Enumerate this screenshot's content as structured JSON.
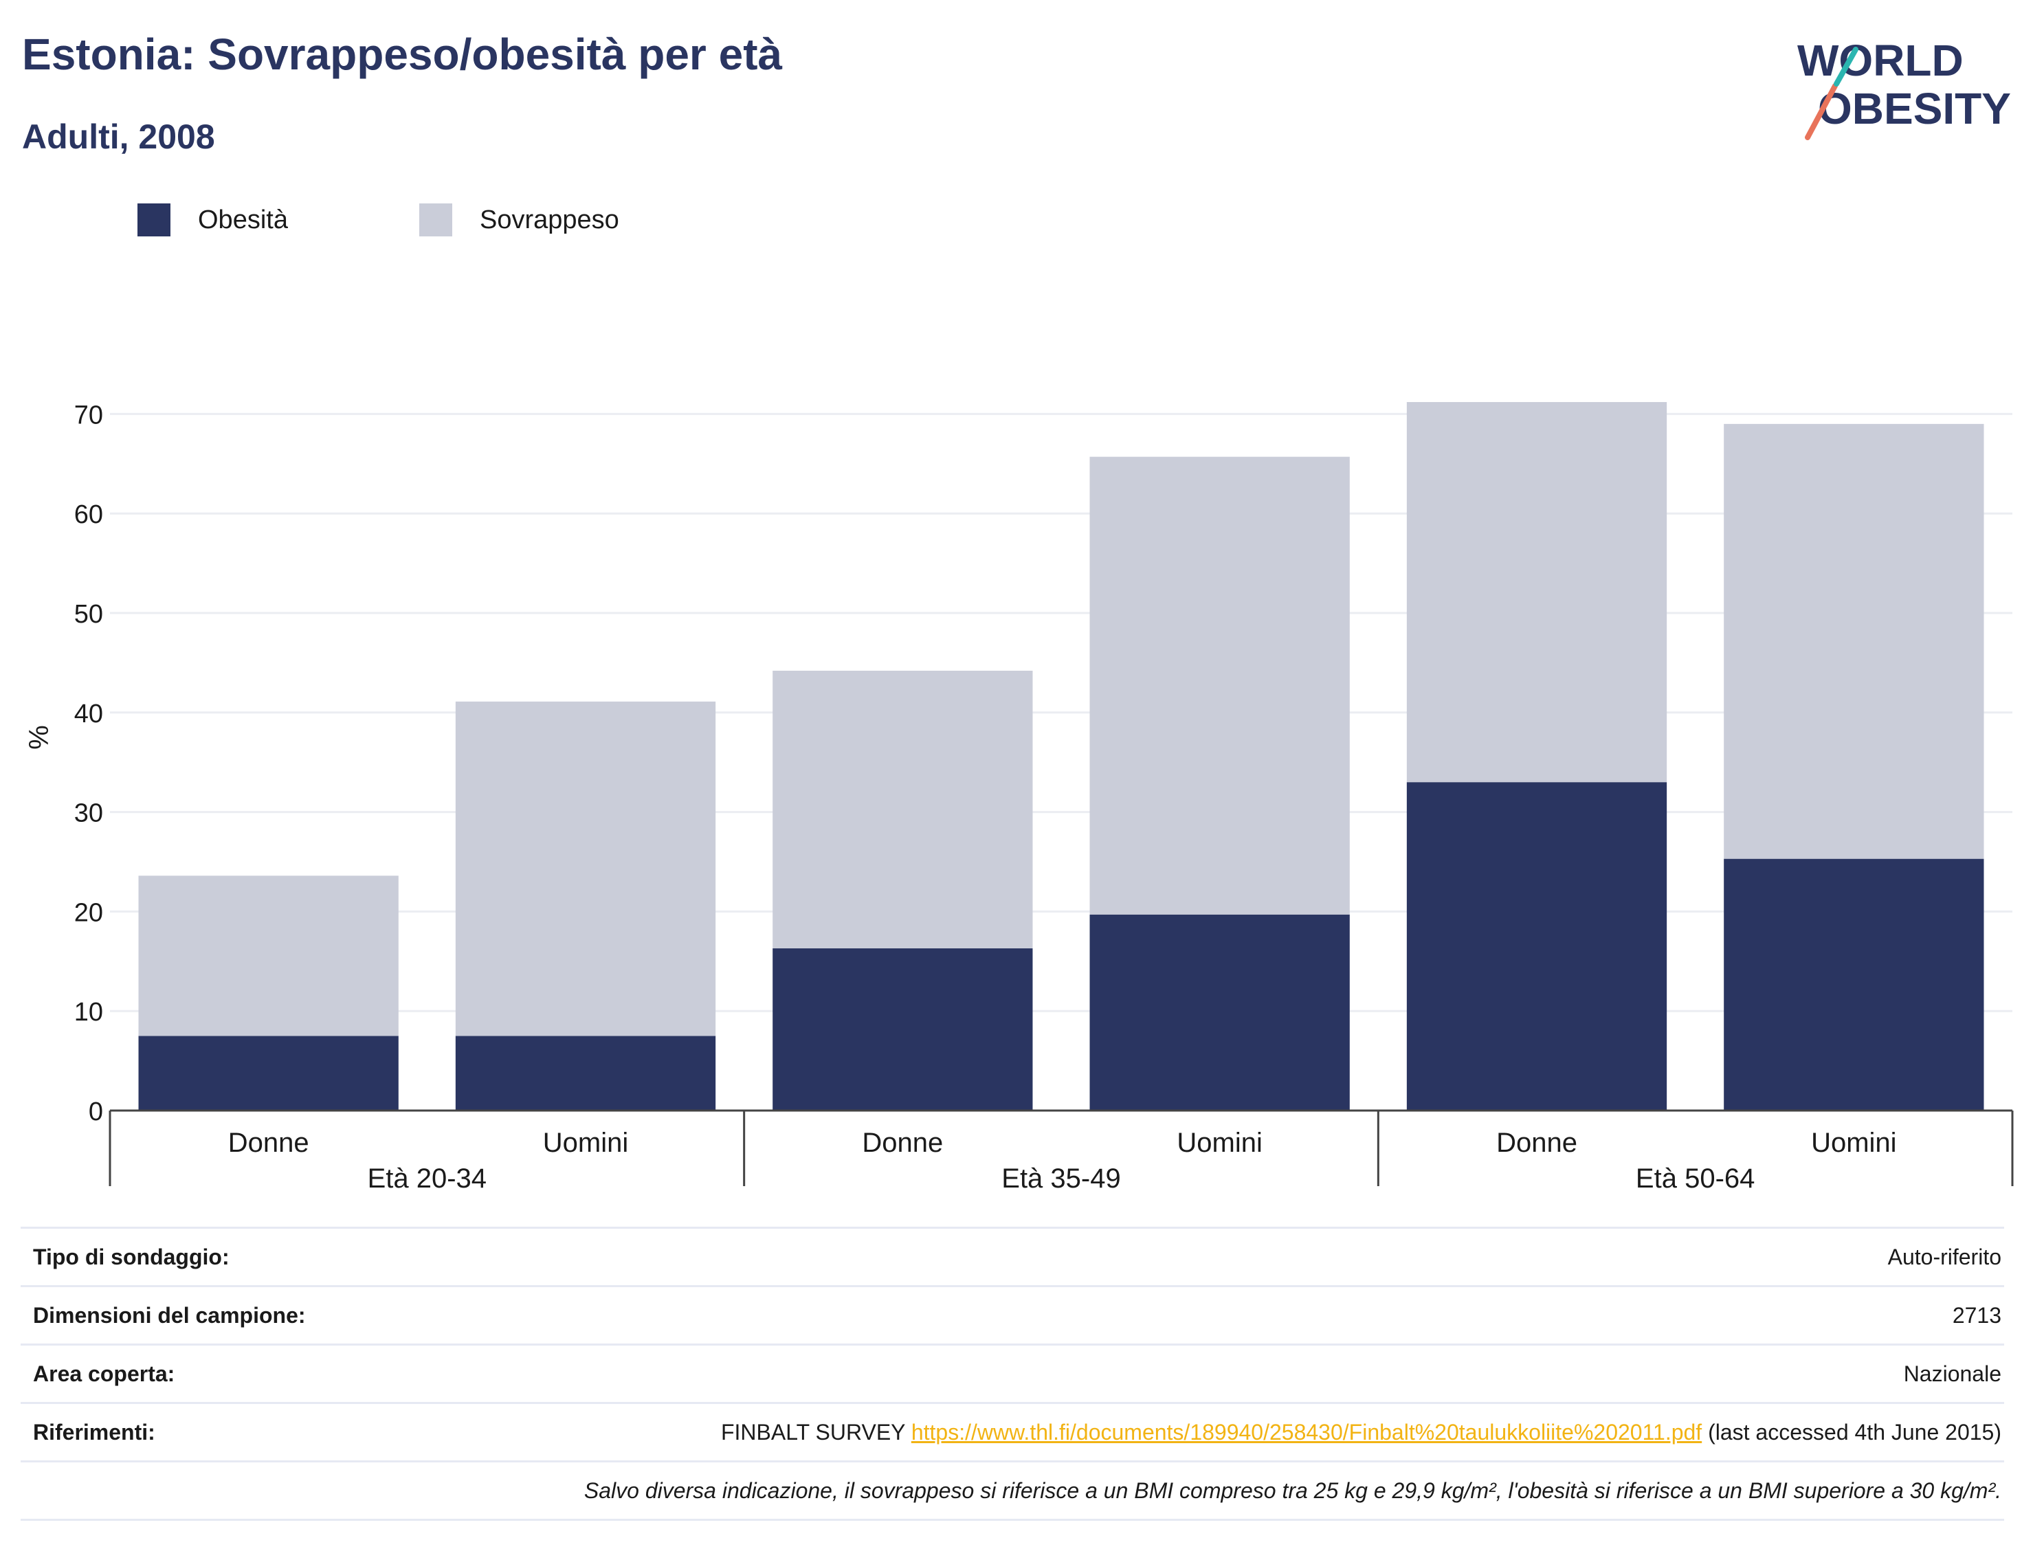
{
  "header": {
    "title": "Estonia: Sovrappeso/obesità per età",
    "subtitle": "Adulti, 2008"
  },
  "logo": {
    "line1": "WORLD",
    "line2": "OBESITY"
  },
  "colors": {
    "obesity": "#2a3561",
    "overweight": "#cacdd9",
    "axis": "#444444",
    "grid": "#ebedf2",
    "link": "#f2b313",
    "title": "#2a3561"
  },
  "chart_data": {
    "type": "bar",
    "stacked": true,
    "ylabel": "%",
    "ylim": [
      0,
      75
    ],
    "yticks": [
      0,
      10,
      20,
      30,
      40,
      50,
      60,
      70
    ],
    "grid": true,
    "legend_placement": "top-left",
    "categories": [
      "Donne",
      "Uomini",
      "Donne",
      "Uomini",
      "Donne",
      "Uomini"
    ],
    "groups": [
      {
        "label": "Età 20-34",
        "span": 2
      },
      {
        "label": "Età 35-49",
        "span": 2
      },
      {
        "label": "Età 50-64",
        "span": 2
      }
    ],
    "series": [
      {
        "name": "Obesità",
        "values": [
          7.5,
          7.5,
          16.3,
          19.7,
          33.0,
          25.3
        ]
      },
      {
        "name": "Sovrappeso",
        "values": [
          16.1,
          33.6,
          27.9,
          46.0,
          38.2,
          43.7
        ]
      }
    ]
  },
  "info": {
    "rows": [
      {
        "key": "Tipo di sondaggio:",
        "value": "Auto-riferito"
      },
      {
        "key": "Dimensioni del campione:",
        "value": "2713"
      },
      {
        "key": "Area coperta:",
        "value": "Nazionale"
      }
    ],
    "references": {
      "key": "Riferimenti:",
      "prefix": "FINBALT SURVEY",
      "link": "https://www.thl.fi/documents/189940/258430/Finbalt%20taulukkoliite%202011.pdf",
      "suffix": "(last accessed 4th June 2015)"
    },
    "note": "Salvo diversa indicazione, il sovrappeso si riferisce a un BMI compreso tra 25 kg e 29,9 kg/m², l'obesità si riferisce a un BMI superiore a 30 kg/m²."
  }
}
